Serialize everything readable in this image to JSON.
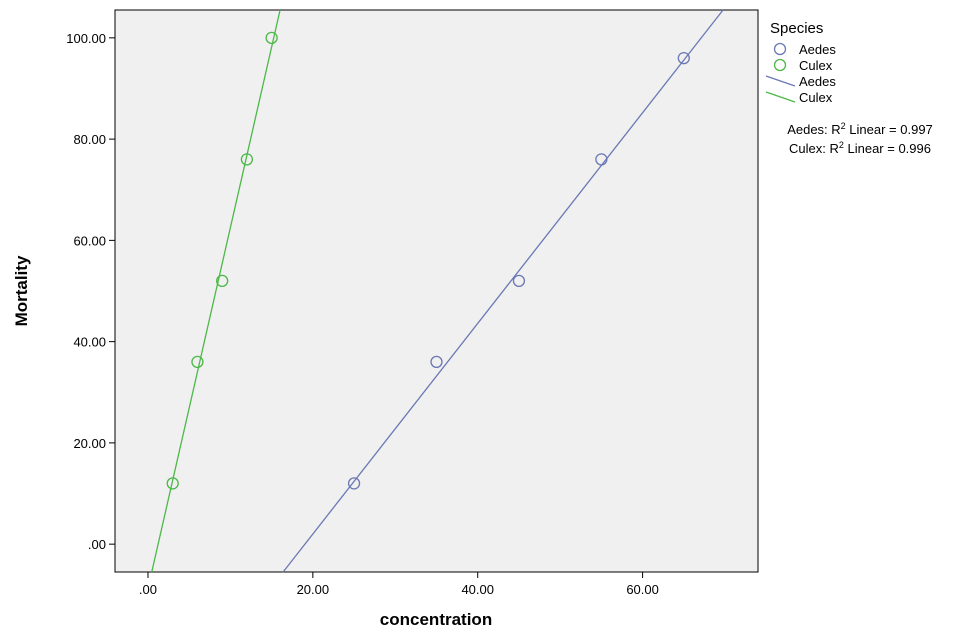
{
  "chart_data": {
    "type": "scatter",
    "xlabel": "concentration",
    "ylabel": "Mortality",
    "xlim": [
      -4,
      74
    ],
    "ylim": [
      -5.5,
      105.5
    ],
    "x_ticks": [
      0,
      20,
      40,
      60
    ],
    "x_tick_labels": [
      ".00",
      "20.00",
      "40.00",
      "60.00"
    ],
    "y_ticks": [
      0,
      20,
      40,
      60,
      80,
      100
    ],
    "y_tick_labels": [
      ".00",
      "20.00",
      "40.00",
      "60.00",
      "80.00",
      "100.00"
    ],
    "grid": false,
    "legend": {
      "title": "Species",
      "position": "right",
      "entries": [
        {
          "label": "Aedes",
          "kind": "marker",
          "color": "#6b78b4"
        },
        {
          "label": "Culex",
          "kind": "marker",
          "color": "#4cb848"
        },
        {
          "label": "Aedes",
          "kind": "line",
          "color": "#6b78b4"
        },
        {
          "label": "Culex",
          "kind": "line",
          "color": "#4cb848"
        }
      ]
    },
    "fit_labels": [
      {
        "prefix": "Aedes: R",
        "sup": "2",
        "suffix": " Linear = 0.997"
      },
      {
        "prefix": "Culex: R",
        "sup": "2",
        "suffix": " Linear = 0.996"
      }
    ],
    "series": [
      {
        "name": "Aedes",
        "color": "#6b78b4",
        "x": [
          25,
          35,
          45,
          55,
          65
        ],
        "y": [
          12,
          36,
          52,
          76,
          96
        ],
        "fit": {
          "slope": 2.08,
          "intercept": -39.6
        }
      },
      {
        "name": "Culex",
        "color": "#4cb848",
        "x": [
          3,
          6,
          9,
          12,
          15
        ],
        "y": [
          12,
          36,
          52,
          76,
          100
        ],
        "fit": {
          "slope": 7.13,
          "intercept": -8.76
        }
      }
    ]
  }
}
